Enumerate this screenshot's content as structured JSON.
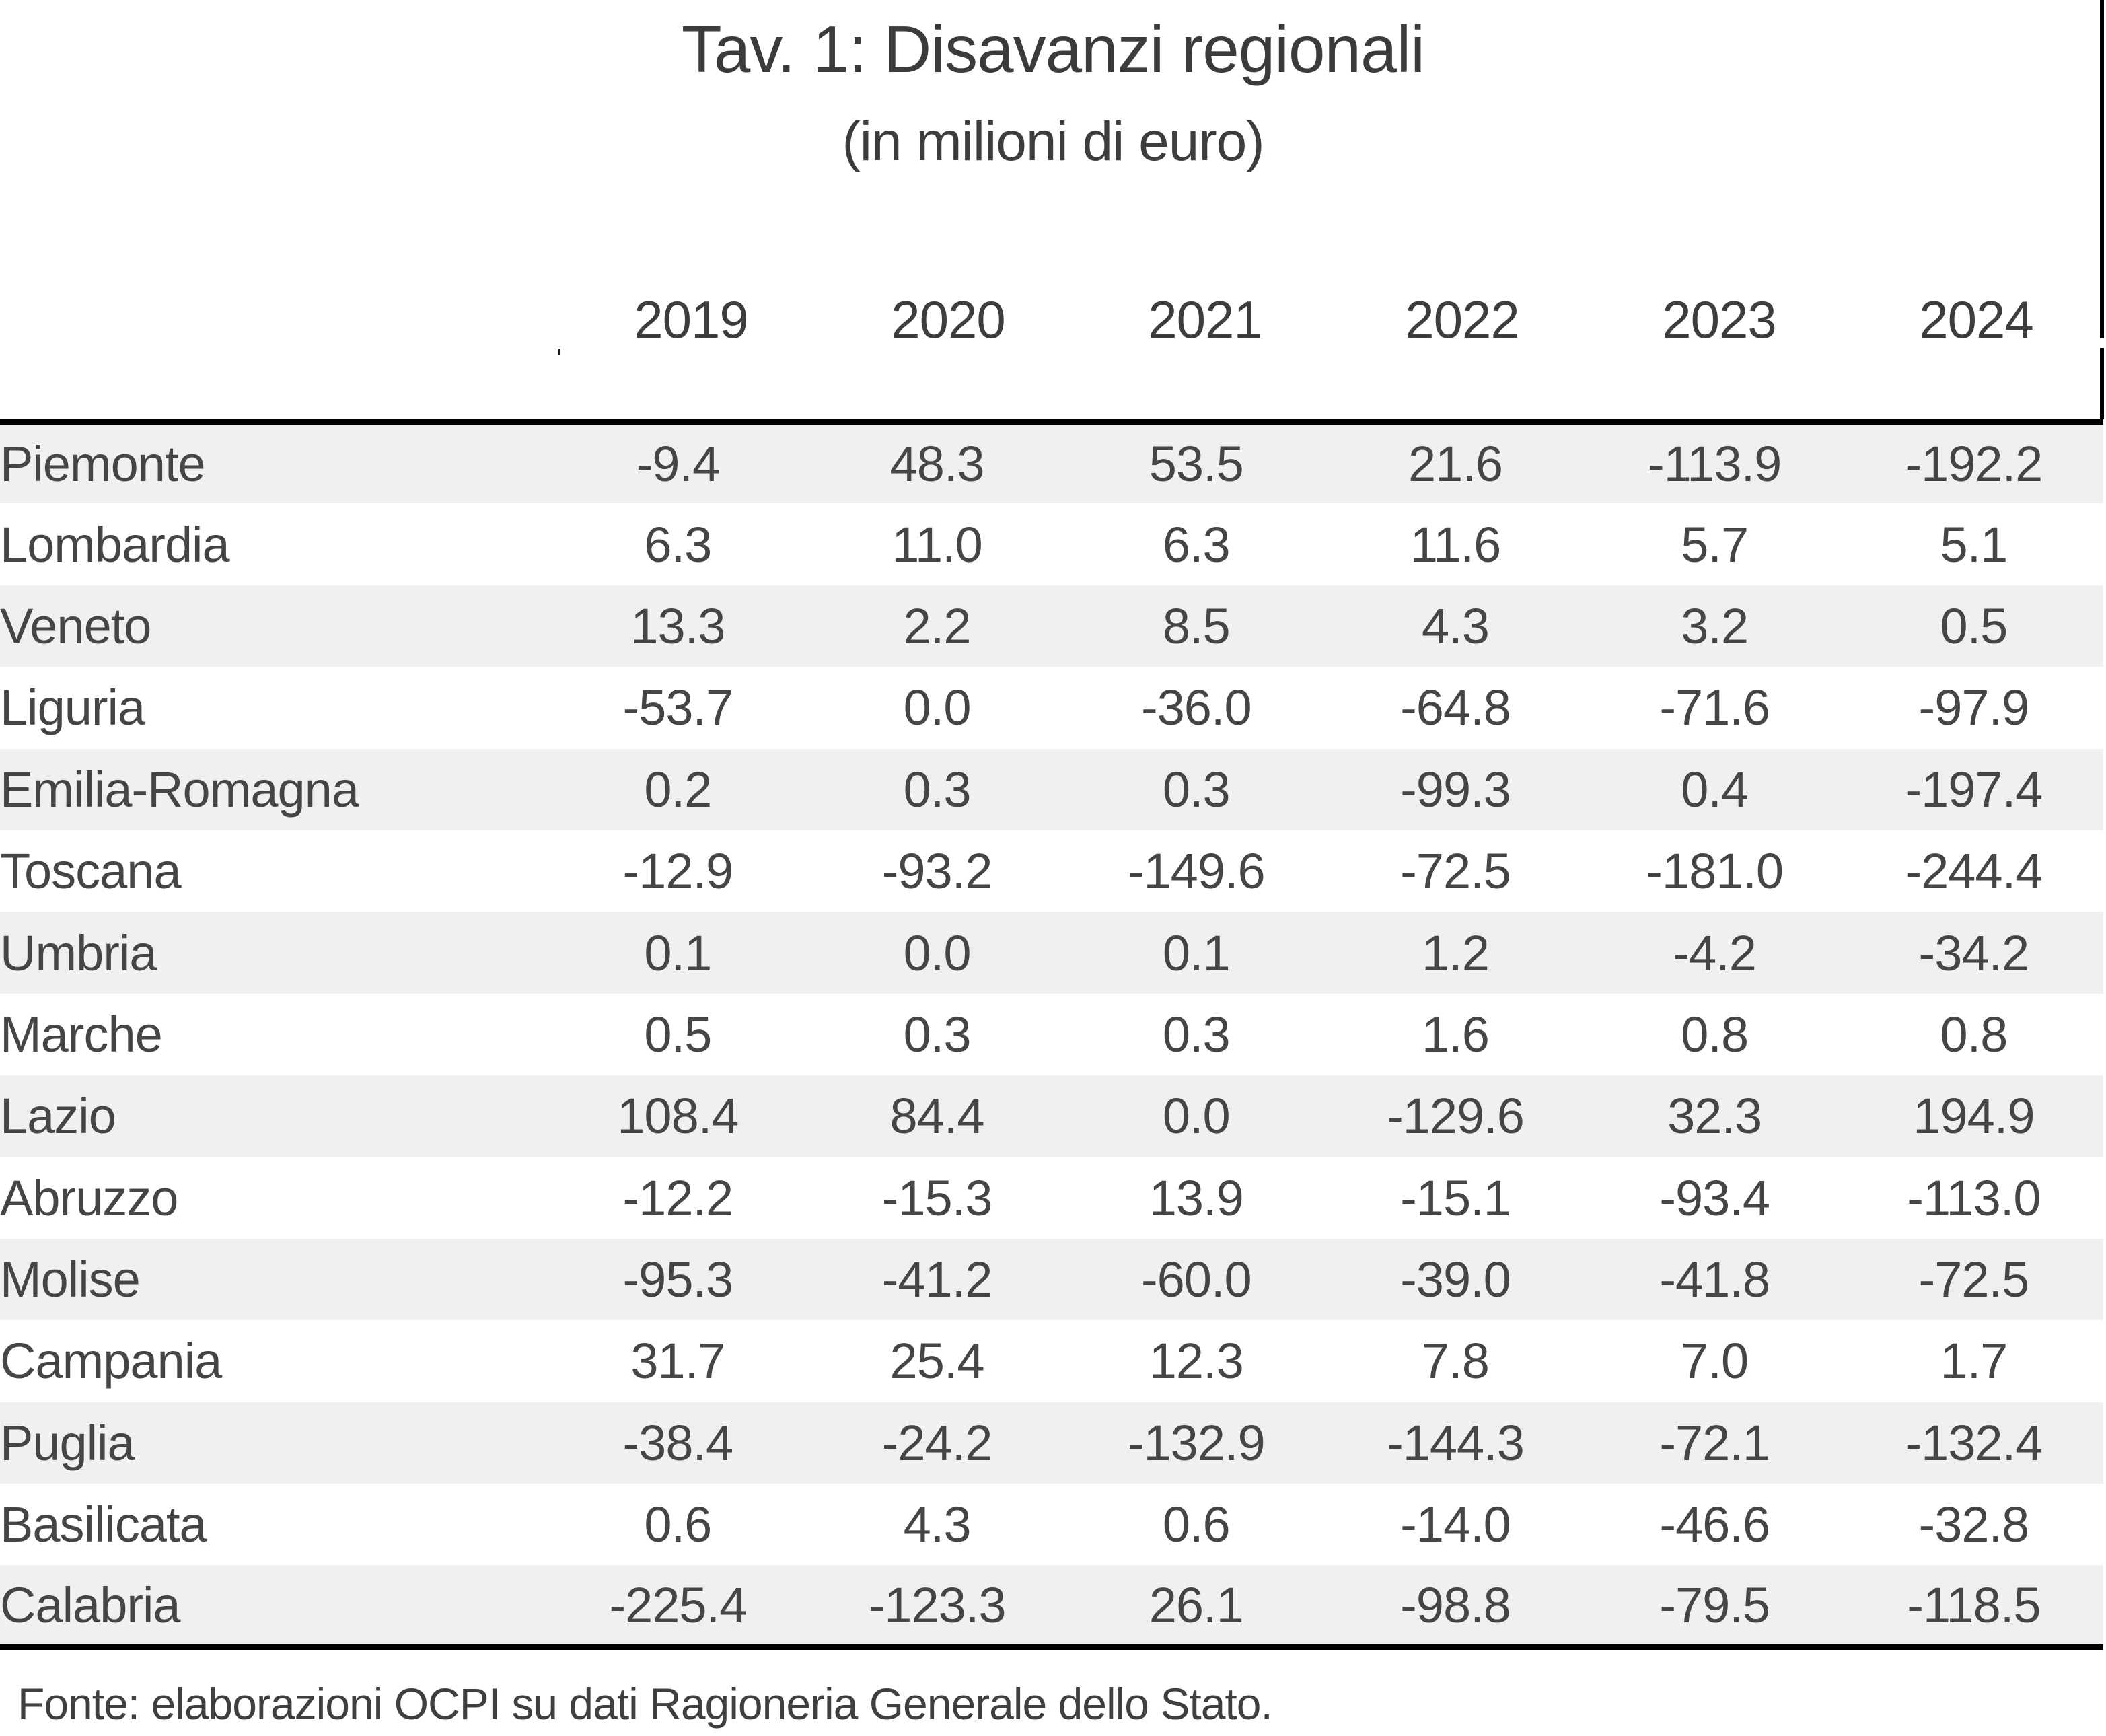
{
  "page": {
    "title": "Tav. 1: Disavanzi regionali",
    "subtitle": "(in milioni di euro)",
    "source": "Fonte: elaborazioni OCPI su dati Ragioneria Generale dello Stato."
  },
  "colors": {
    "background": "#ffffff",
    "row_stripe": "#f0f0f0",
    "text": "#404040",
    "table_border": "#000000"
  },
  "chart_data": {
    "type": "table",
    "title": "Tav. 1: Disavanzi regionali",
    "subtitle": "(in milioni di euro)",
    "unit": "milioni di euro",
    "columns": [
      "2019",
      "2020",
      "2021",
      "2022",
      "2023",
      "2024"
    ],
    "rows": [
      {
        "region": "Piemonte",
        "values": [
          "-9.4",
          "48.3",
          "53.5",
          "21.6",
          "-113.9",
          "-192.2"
        ]
      },
      {
        "region": "Lombardia",
        "values": [
          "6.3",
          "11.0",
          "6.3",
          "11.6",
          "5.7",
          "5.1"
        ]
      },
      {
        "region": "Veneto",
        "values": [
          "13.3",
          "2.2",
          "8.5",
          "4.3",
          "3.2",
          "0.5"
        ]
      },
      {
        "region": "Liguria",
        "values": [
          "-53.7",
          "0.0",
          "-36.0",
          "-64.8",
          "-71.6",
          "-97.9"
        ]
      },
      {
        "region": "Emilia-Romagna",
        "values": [
          "0.2",
          "0.3",
          "0.3",
          "-99.3",
          "0.4",
          "-197.4"
        ]
      },
      {
        "region": "Toscana",
        "values": [
          "-12.9",
          "-93.2",
          "-149.6",
          "-72.5",
          "-181.0",
          "-244.4"
        ]
      },
      {
        "region": "Umbria",
        "values": [
          "0.1",
          "0.0",
          "0.1",
          "1.2",
          "-4.2",
          "-34.2"
        ]
      },
      {
        "region": "Marche",
        "values": [
          "0.5",
          "0.3",
          "0.3",
          "1.6",
          "0.8",
          "0.8"
        ]
      },
      {
        "region": "Lazio",
        "values": [
          "108.4",
          "84.4",
          "0.0",
          "-129.6",
          "32.3",
          "194.9"
        ]
      },
      {
        "region": "Abruzzo",
        "values": [
          "-12.2",
          "-15.3",
          "13.9",
          "-15.1",
          "-93.4",
          "-113.0"
        ]
      },
      {
        "region": "Molise",
        "values": [
          "-95.3",
          "-41.2",
          "-60.0",
          "-39.0",
          "-41.8",
          "-72.5"
        ]
      },
      {
        "region": "Campania",
        "values": [
          "31.7",
          "25.4",
          "12.3",
          "7.8",
          "7.0",
          "1.7"
        ]
      },
      {
        "region": "Puglia",
        "values": [
          "-38.4",
          "-24.2",
          "-132.9",
          "-144.3",
          "-72.1",
          "-132.4"
        ]
      },
      {
        "region": "Basilicata",
        "values": [
          "0.6",
          "4.3",
          "0.6",
          "-14.0",
          "-46.6",
          "-32.8"
        ]
      },
      {
        "region": "Calabria",
        "values": [
          "-225.4",
          "-123.3",
          "26.1",
          "-98.8",
          "-79.5",
          "-118.5"
        ]
      }
    ],
    "source": "Fonte: elaborazioni OCPI su dati Ragioneria Generale dello Stato.",
    "layout": {
      "stripes": "odd-rows-gray",
      "legend": "none",
      "grid": "none",
      "first_column": "region names left-aligned, year columns centered"
    }
  }
}
